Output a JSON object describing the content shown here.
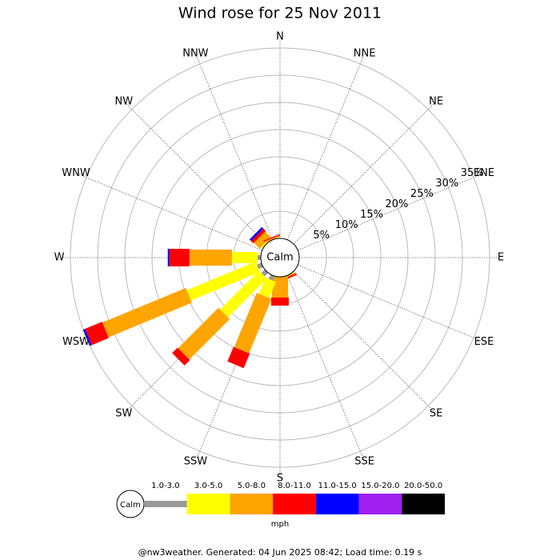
{
  "chart_data": {
    "type": "windrose",
    "title": "Wind rose for 25 Nov 2011",
    "directions": [
      "N",
      "NNE",
      "NE",
      "ENE",
      "E",
      "ESE",
      "SE",
      "SSE",
      "S",
      "SSW",
      "SW",
      "WSW",
      "W",
      "WNW",
      "NW",
      "NNW"
    ],
    "center_label": "Calm",
    "unit": "mph",
    "series": [
      {
        "name": "1.0-3.0",
        "color": "#999999",
        "values": [
          0,
          0,
          0,
          0,
          0,
          0,
          0,
          0,
          0,
          0.9,
          0.9,
          0.9,
          0.6,
          0,
          0,
          0
        ]
      },
      {
        "name": "3.0-5.0",
        "color": "#ffff00",
        "values": [
          0,
          0,
          0,
          0,
          0,
          0,
          0,
          0,
          0,
          3.2,
          10.1,
          13.7,
          4.7,
          0,
          0.3,
          0
        ]
      },
      {
        "name": "5.0-8.0",
        "color": "#ffa500",
        "values": [
          0,
          0,
          0,
          0,
          0,
          0,
          0,
          0.3,
          3.8,
          10.8,
          10.5,
          16.6,
          7.8,
          0,
          1.5,
          0.3
        ]
      },
      {
        "name": "8.0-11.0",
        "color": "#ff0000",
        "values": [
          0,
          0,
          0,
          0,
          0,
          0,
          0,
          0.3,
          1.5,
          2.9,
          1.4,
          3.4,
          3.7,
          0,
          0.6,
          0.2
        ]
      },
      {
        "name": "11.0-15.0",
        "color": "#0000ff",
        "values": [
          0,
          0,
          0,
          0,
          0,
          0,
          0,
          0,
          0,
          0,
          0,
          0.4,
          0.3,
          0,
          0.4,
          0
        ]
      },
      {
        "name": "15.0-20.0",
        "color": "#a020f0",
        "values": [
          0,
          0,
          0,
          0,
          0,
          0,
          0,
          0,
          0,
          0,
          0,
          0,
          0,
          0,
          0,
          0
        ]
      },
      {
        "name": "20.0-50.0",
        "color": "#000000",
        "values": [
          0,
          0,
          0,
          0,
          0,
          0,
          0,
          0,
          0,
          0,
          0,
          0,
          0,
          0,
          0,
          0
        ]
      }
    ],
    "rlim": [
      0,
      35
    ],
    "rticks": [
      {
        "value": 5,
        "label": "5%"
      },
      {
        "value": 10,
        "label": "10%"
      },
      {
        "value": 15,
        "label": "15%"
      },
      {
        "value": 20,
        "label": "20%"
      },
      {
        "value": 25,
        "label": "25%"
      },
      {
        "value": 30,
        "label": "30%"
      },
      {
        "value": 35,
        "label": "35%"
      }
    ],
    "note": "@nw3weather. Generated: 04 Jun 2025 08:42; Load time: 0.19 s"
  }
}
